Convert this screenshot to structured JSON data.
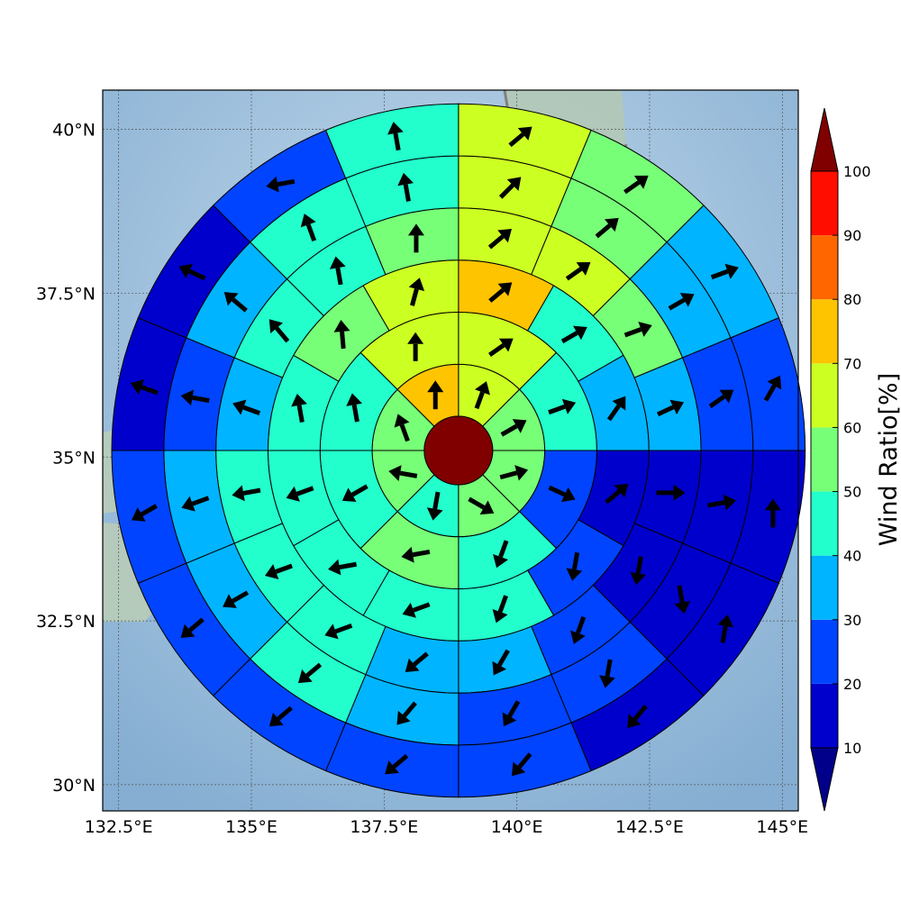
{
  "chart_data": {
    "type": "heatmap",
    "map": {
      "lon_range": [
        132.2,
        145.3
      ],
      "lat_range": [
        29.6,
        40.6
      ],
      "x_ticks": [
        {
          "value": 132.5,
          "label": "132.5°E"
        },
        {
          "value": 135,
          "label": "135°E"
        },
        {
          "value": 137.5,
          "label": "137.5°E"
        },
        {
          "value": 140,
          "label": "140°E"
        },
        {
          "value": 142.5,
          "label": "142.5°E"
        },
        {
          "value": 145,
          "label": "145°E"
        }
      ],
      "y_ticks": [
        {
          "value": 30,
          "label": "30°N"
        },
        {
          "value": 32.5,
          "label": "32.5°N"
        },
        {
          "value": 35,
          "label": "35°N"
        },
        {
          "value": 37.5,
          "label": "37.5°N"
        },
        {
          "value": 40,
          "label": "40°N"
        }
      ],
      "grid": true
    },
    "polar_grid": {
      "center": {
        "lon": 138.9,
        "lat": 35.1
      },
      "center_value": 100,
      "sectors_per_ring": [
        8,
        8,
        12,
        16,
        16,
        16
      ],
      "rings": [
        {
          "ring": 1,
          "values": [
            60,
            50,
            50,
            50,
            40,
            50,
            55,
            75
          ],
          "arrow_angles": [
            70,
            30,
            15,
            -30,
            -100,
            170,
            110,
            90
          ]
        },
        {
          "ring": 2,
          "values": [
            65,
            40,
            20,
            40,
            50,
            40,
            45,
            65
          ],
          "arrow_angles": [
            35,
            20,
            -25,
            -110,
            -170,
            -150,
            100,
            90
          ]
        },
        {
          "ring": 3,
          "values": [
            75,
            40,
            30,
            15,
            25,
            40,
            45,
            45,
            40,
            40,
            50,
            60
          ],
          "arrow_angles": [
            40,
            30,
            55,
            40,
            -100,
            -110,
            -160,
            -170,
            -160,
            100,
            95,
            75
          ]
        },
        {
          "ring": 4,
          "values": [
            65,
            60,
            50,
            30,
            15,
            15,
            20,
            35,
            30,
            40,
            45,
            40,
            35,
            40,
            45,
            50
          ],
          "arrow_angles": [
            40,
            35,
            20,
            25,
            0,
            -100,
            -110,
            -120,
            -140,
            -160,
            -160,
            -170,
            160,
            130,
            100,
            90
          ]
        },
        {
          "ring": 5,
          "values": [
            60,
            50,
            30,
            20,
            15,
            10,
            20,
            20,
            30,
            40,
            30,
            30,
            20,
            30,
            40,
            45
          ],
          "arrow_angles": [
            45,
            40,
            30,
            35,
            10,
            -80,
            -100,
            -120,
            -130,
            -140,
            -150,
            -160,
            170,
            140,
            110,
            100
          ]
        },
        {
          "ring": 6,
          "values": [
            60,
            50,
            30,
            20,
            15,
            15,
            15,
            20,
            20,
            25,
            20,
            20,
            15,
            10,
            20,
            45
          ],
          "arrow_angles": [
            40,
            35,
            20,
            60,
            90,
            80,
            -130,
            -130,
            -140,
            -140,
            -140,
            -150,
            160,
            155,
            -170,
            100
          ]
        }
      ]
    },
    "colorbar": {
      "label": "Wind Ratio[%]",
      "ticks": [
        10,
        20,
        30,
        40,
        50,
        60,
        70,
        80,
        90,
        100
      ],
      "bin_colors": [
        "#0000cc",
        "#0044ff",
        "#00b4ff",
        "#22ffcc",
        "#77ff77",
        "#ccff22",
        "#ffc400",
        "#ff6600",
        "#ff0e00"
      ],
      "under_color": "#00008b",
      "over_color": "#800000",
      "extend": "both"
    },
    "colors": {
      "ocean": "#85aed2",
      "land": "#b2c8b6",
      "coastline": "#808080",
      "arrow": "#000000"
    }
  }
}
